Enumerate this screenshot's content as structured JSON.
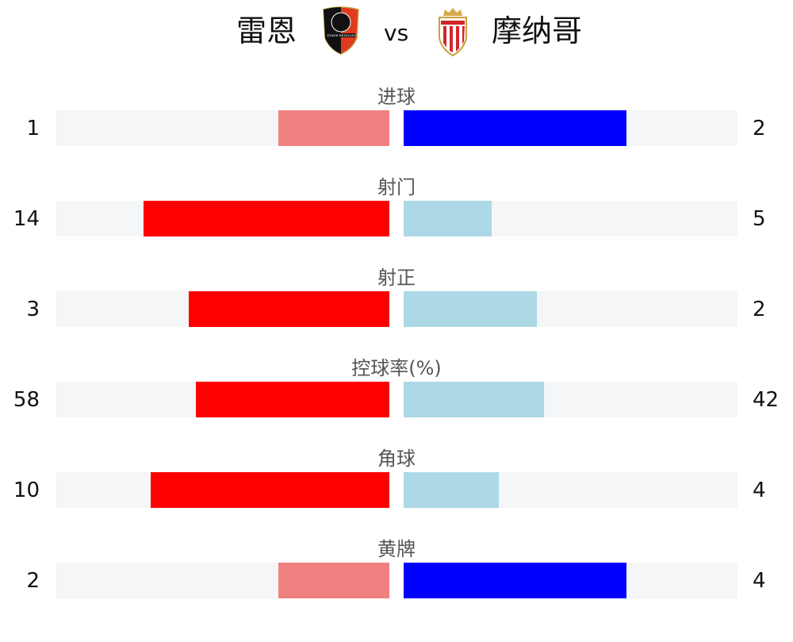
{
  "header": {
    "home_team": "雷恩",
    "away_team": "摩纳哥",
    "vs": "vs"
  },
  "colors": {
    "win_home": "#ff0000",
    "lose_home": "#f08080",
    "win_away": "#0000ff",
    "lose_away": "#add8e6",
    "track": "#f4f6f8"
  },
  "stats": [
    {
      "label": "进球",
      "home": 1,
      "away": 2
    },
    {
      "label": "射门",
      "home": 14,
      "away": 5
    },
    {
      "label": "射正",
      "home": 3,
      "away": 2
    },
    {
      "label": "控球率(%)",
      "home": 58,
      "away": 42
    },
    {
      "label": "角球",
      "home": 10,
      "away": 4
    },
    {
      "label": "黄牌",
      "home": 2,
      "away": 4
    }
  ]
}
